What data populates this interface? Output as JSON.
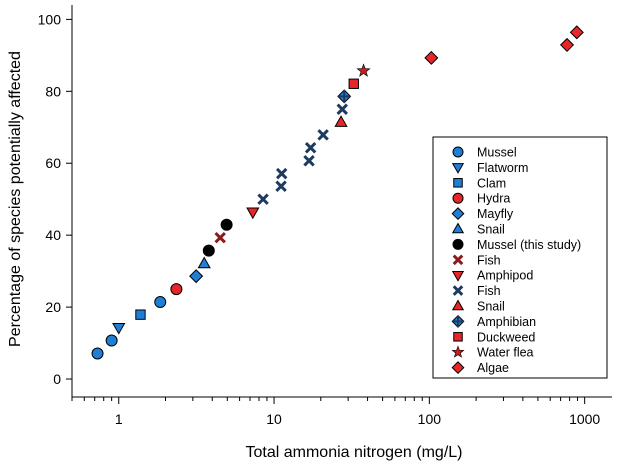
{
  "chart_data": {
    "type": "scatter",
    "xscale": "log",
    "xlabel": "Total ammonia nitrogen (mg/L)",
    "ylabel": "Percentage of species potentially affected",
    "xlim": [
      0.5,
      1500
    ],
    "ylim": [
      -5,
      104
    ],
    "xticks": [
      {
        "value": 1,
        "label": "1"
      },
      {
        "value": 10,
        "label": "10"
      },
      {
        "value": 100,
        "label": "100"
      },
      {
        "value": 1000,
        "label": "1000"
      }
    ],
    "yticks": [
      {
        "value": 0,
        "label": "0"
      },
      {
        "value": 20,
        "label": "20"
      },
      {
        "value": 40,
        "label": "40"
      },
      {
        "value": 60,
        "label": "60"
      },
      {
        "value": 80,
        "label": "80"
      },
      {
        "value": 100,
        "label": "100"
      }
    ],
    "grid": false,
    "legend_position": "right",
    "series": [
      {
        "name": "Mussel",
        "marker": "circle",
        "color": "#1f7fd6",
        "points": [
          [
            0.73,
            7.1
          ],
          [
            0.9,
            10.7
          ],
          [
            1.85,
            21.4
          ]
        ]
      },
      {
        "name": "Flatworm",
        "marker": "triangle-down",
        "color": "#1f7fd6",
        "points": [
          [
            1.0,
            14.3
          ]
        ]
      },
      {
        "name": "Clam",
        "marker": "square",
        "color": "#1f7fd6",
        "points": [
          [
            1.38,
            17.9
          ]
        ]
      },
      {
        "name": "Hydra",
        "marker": "circle",
        "color": "#e8262a",
        "points": [
          [
            2.35,
            25.0
          ]
        ]
      },
      {
        "name": "Mayfly",
        "marker": "diamond",
        "color": "#1f7fd6",
        "points": [
          [
            3.15,
            28.6
          ]
        ]
      },
      {
        "name": "Snail",
        "marker": "triangle-up",
        "color": "#1f7fd6",
        "points": [
          [
            3.55,
            32.1
          ]
        ]
      },
      {
        "name": "Mussel (this study)",
        "marker": "circle",
        "color": "#000000",
        "points": [
          [
            3.8,
            35.7
          ],
          [
            4.95,
            42.9
          ]
        ]
      },
      {
        "name": "Fish",
        "marker": "x",
        "color": "#8b1a1a",
        "points": [
          [
            4.5,
            39.3
          ]
        ]
      },
      {
        "name": "Amphipod",
        "marker": "triangle-down",
        "color": "#e8262a",
        "points": [
          [
            7.3,
            46.4
          ]
        ]
      },
      {
        "name": "Fish",
        "marker": "x",
        "color": "#1d3a5f",
        "points": [
          [
            8.5,
            50.0
          ],
          [
            11.1,
            53.6
          ],
          [
            11.2,
            57.1
          ],
          [
            16.8,
            60.7
          ],
          [
            17.2,
            64.3
          ],
          [
            20.7,
            67.9
          ],
          [
            27.5,
            75.0
          ]
        ]
      },
      {
        "name": "Snail",
        "marker": "triangle-up",
        "color": "#e8262a",
        "points": [
          [
            27.0,
            71.4
          ]
        ]
      },
      {
        "name": "Amphibian",
        "marker": "amphibian",
        "color": "#1f7fd6",
        "points": [
          [
            28.3,
            78.6
          ]
        ]
      },
      {
        "name": "Duckweed",
        "marker": "square",
        "color": "#e8262a",
        "points": [
          [
            32.6,
            82.1
          ]
        ]
      },
      {
        "name": "Water flea",
        "marker": "star",
        "color": "#c0201f",
        "points": [
          [
            37.7,
            85.7
          ]
        ]
      },
      {
        "name": "Algae",
        "marker": "diamond",
        "color": "#e8262a",
        "points": [
          [
            103,
            89.3
          ],
          [
            770,
            92.9
          ],
          [
            890,
            96.4
          ]
        ]
      }
    ]
  }
}
